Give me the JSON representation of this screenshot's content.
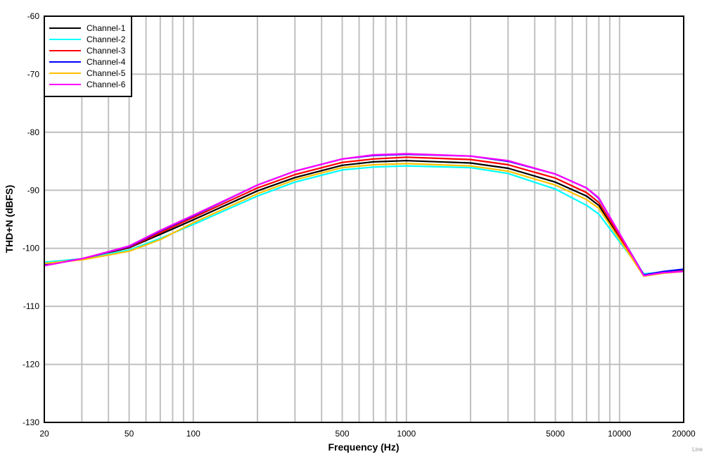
{
  "chart_data": {
    "type": "line",
    "title": "",
    "xlabel": "Frequency (Hz)",
    "ylabel": "THD+N (dBFS)",
    "xscale": "log",
    "xlim": [
      20,
      20000
    ],
    "ylim": [
      -130,
      -60
    ],
    "grid": true,
    "legend_position": "upper-left",
    "x_ticks": [
      20,
      50,
      100,
      500,
      1000,
      5000,
      10000,
      20000
    ],
    "x_tick_labels": [
      "20",
      "50",
      "100",
      "500",
      "1000",
      "5000",
      "10000",
      "20000"
    ],
    "y_ticks": [
      -60,
      -70,
      -80,
      -90,
      -100,
      -110,
      -120,
      -130
    ],
    "y_tick_labels": [
      "-60",
      "-70",
      "-80",
      "-90",
      "-100",
      "-110",
      "-120",
      "-130"
    ],
    "x": [
      20,
      30,
      50,
      70,
      100,
      200,
      300,
      500,
      700,
      1000,
      2000,
      3000,
      5000,
      7000,
      8000,
      13000,
      16000,
      20000
    ],
    "series": [
      {
        "name": "Channel-1",
        "color": "#000000",
        "values": [
          -102.7,
          -101.8,
          -99.9,
          -97.6,
          -95.1,
          -90.1,
          -87.8,
          -85.7,
          -85.1,
          -84.9,
          -85.3,
          -86.2,
          -88.6,
          -91.0,
          -92.6,
          -104.6,
          -104.2,
          -103.8
        ]
      },
      {
        "name": "Channel-2",
        "color": "#00ffff",
        "values": [
          -102.4,
          -101.8,
          -100.3,
          -98.3,
          -95.9,
          -91.0,
          -88.6,
          -86.5,
          -86.0,
          -85.8,
          -86.1,
          -87.1,
          -89.8,
          -92.6,
          -94.1,
          -104.4,
          -104.1,
          -103.8
        ]
      },
      {
        "name": "Channel-3",
        "color": "#ff0000",
        "values": [
          -102.8,
          -101.8,
          -99.8,
          -97.3,
          -94.7,
          -89.6,
          -87.3,
          -85.2,
          -84.6,
          -84.3,
          -84.7,
          -85.6,
          -87.9,
          -90.4,
          -92.1,
          -104.7,
          -104.2,
          -103.9
        ]
      },
      {
        "name": "Channel-4",
        "color": "#0000ff",
        "values": [
          -102.9,
          -101.8,
          -99.7,
          -97.0,
          -94.4,
          -89.1,
          -86.7,
          -84.6,
          -84.0,
          -83.8,
          -84.1,
          -85.0,
          -87.2,
          -89.6,
          -91.4,
          -104.6,
          -104.0,
          -103.6
        ]
      },
      {
        "name": "Channel-5",
        "color": "#ffc000",
        "values": [
          -102.6,
          -102.0,
          -100.5,
          -98.5,
          -95.6,
          -90.6,
          -88.2,
          -86.1,
          -85.6,
          -85.4,
          -85.8,
          -86.7,
          -89.1,
          -91.6,
          -93.1,
          -104.8,
          -104.3,
          -104.0
        ]
      },
      {
        "name": "Channel-6",
        "color": "#ff00ff",
        "values": [
          -103.0,
          -101.8,
          -99.6,
          -96.9,
          -94.3,
          -89.1,
          -86.7,
          -84.6,
          -83.9,
          -83.7,
          -84.1,
          -84.9,
          -87.2,
          -89.6,
          -91.3,
          -104.7,
          -104.2,
          -104.0
        ]
      }
    ]
  },
  "watermark": "Line"
}
